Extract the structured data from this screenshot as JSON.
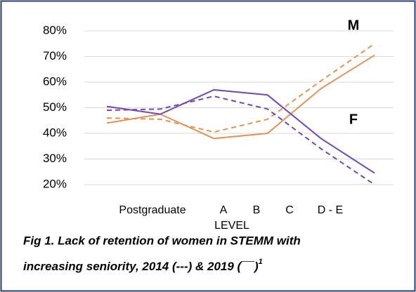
{
  "chart_data": {
    "type": "line",
    "categories": [
      null,
      "Postgraduate",
      "A",
      "B",
      "C",
      "D - E"
    ],
    "x_label": "LEVEL",
    "series": [
      {
        "color": "#e0945a",
        "dash": true,
        "values": [
          46,
          45.5,
          40.5,
          45.5,
          60.5,
          75
        ]
      },
      {
        "color": "#e0945a",
        "dash": false,
        "values": [
          44,
          47.5,
          38,
          40,
          57.5,
          70.5
        ]
      },
      {
        "color": "#7448b0",
        "dash": true,
        "values": [
          49,
          49.5,
          54.5,
          49.5,
          34,
          20
        ]
      },
      {
        "color": "#7448b0",
        "dash": false,
        "values": [
          50.5,
          47.5,
          57,
          55,
          38,
          24.5
        ]
      }
    ],
    "ylim": [
      20,
      80
    ],
    "yticks": [
      {
        "value": 20,
        "label": "20%"
      },
      {
        "value": 30,
        "label": "30%"
      },
      {
        "value": 40,
        "label": "40%"
      },
      {
        "value": 50,
        "label": "50%"
      },
      {
        "value": 60,
        "label": "60%"
      },
      {
        "value": 70,
        "label": "70%"
      },
      {
        "value": 80,
        "label": "80%"
      }
    ],
    "grid": true,
    "annotations": [
      "M",
      "F"
    ],
    "caption": [
      "Fig 1. Lack of retention of women in STEMM with",
      "increasing seniority, 2014 (---) & 2019 (¯¯)"
    ],
    "caption_superscript": "1"
  }
}
